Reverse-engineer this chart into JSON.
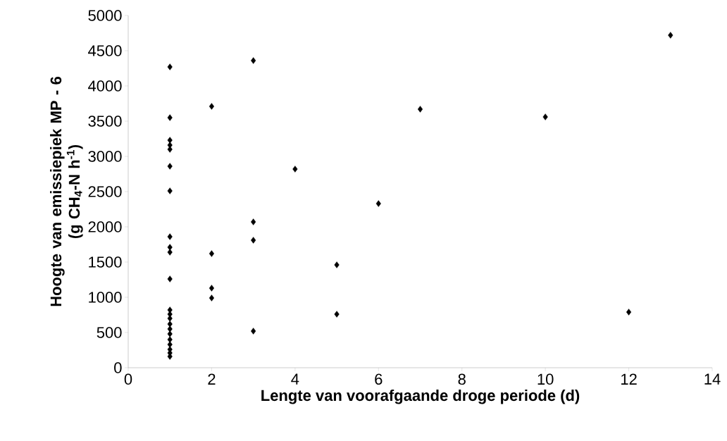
{
  "chart_data": {
    "type": "scatter",
    "xlabel": "Lengte van voorafgaande droge periode (d)",
    "ylabel": "Hoogte van emissiepiek MP - 6\n(g CH$_{4}$-N h$^{-1}$)",
    "x": [
      1,
      1,
      1,
      1,
      1,
      1,
      1,
      1,
      1,
      1,
      1,
      1,
      1,
      1,
      1,
      1,
      1,
      1,
      1,
      1,
      1,
      1,
      2,
      2,
      2,
      2,
      3,
      3,
      3,
      3,
      4,
      5,
      5,
      6,
      7,
      10,
      12,
      13
    ],
    "series": [
      {
        "color": "#000000",
        "values": [
          4270,
          3550,
          3230,
          3160,
          3100,
          2860,
          2510,
          1860,
          1710,
          1640,
          1260,
          820,
          760,
          700,
          620,
          550,
          480,
          400,
          330,
          260,
          210,
          160,
          3710,
          1620,
          1130,
          990,
          4360,
          2070,
          1810,
          520,
          2820,
          1460,
          760,
          2330,
          3670,
          3560,
          790,
          4720
        ]
      }
    ],
    "marker": "diamond",
    "grid": false,
    "xlim": [
      0,
      14
    ],
    "xticks": [
      0,
      2,
      4,
      6,
      8,
      10,
      12,
      14
    ],
    "ylim": [
      0,
      5000
    ],
    "yticks": [
      0,
      500,
      1000,
      1500,
      2000,
      2500,
      3000,
      3500,
      4000,
      4500,
      5000
    ]
  }
}
